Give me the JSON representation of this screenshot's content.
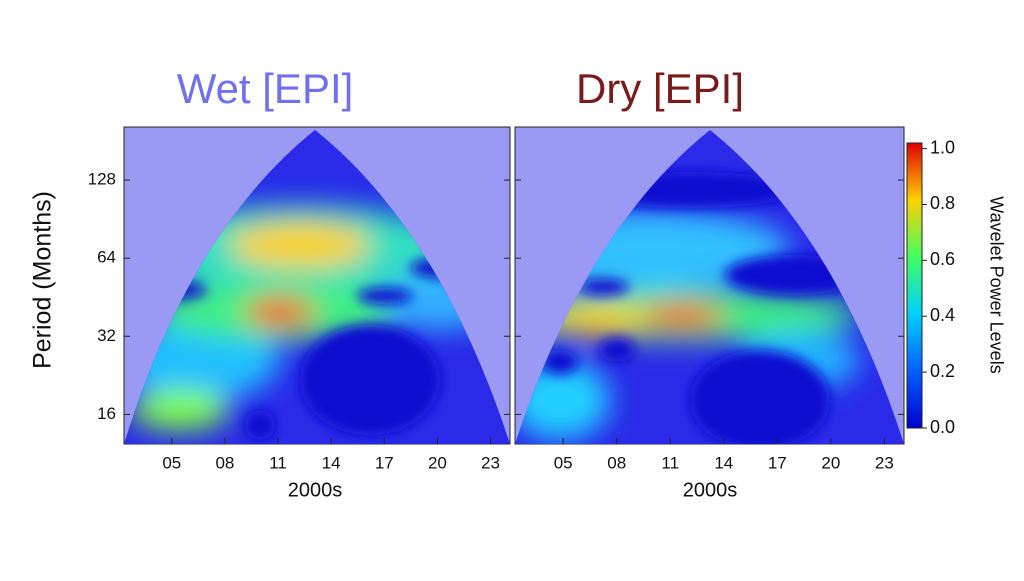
{
  "chart_data": [
    {
      "type": "heatmap",
      "title": "Wet [EPI]",
      "title_color": "#7070f0",
      "xlabel": "2000s",
      "ylabel": "Period (Months)",
      "xlim": [
        2.3,
        24.1
      ],
      "xticks": [
        {
          "value": 5,
          "label": "05"
        },
        {
          "value": 8,
          "label": "08"
        },
        11,
        14,
        17,
        20,
        23
      ],
      "ylim": [
        12.3,
        205
      ],
      "log_scale": true,
      "yticks": [
        16,
        32,
        64,
        128
      ]
    },
    {
      "type": "heatmap",
      "title": "Dry [EPI]",
      "title_color": "#7a1a1a",
      "xlabel": "2000s",
      "xlim": [
        2.3,
        24.1
      ],
      "xticks": [
        {
          "value": 5,
          "label": "05"
        },
        {
          "value": 8,
          "label": "08"
        },
        11,
        14,
        17,
        20,
        23
      ],
      "ylim": [
        12.3,
        205
      ],
      "log_scale": true,
      "colorbar": {
        "label": "Wavelet Power Levels",
        "lim": [
          0,
          1.02
        ],
        "ticks": [
          {
            "value": 0,
            "label": "0.0"
          },
          0.2,
          0.4,
          0.6,
          0.8,
          {
            "value": 1,
            "label": "1.0"
          }
        ]
      }
    }
  ]
}
